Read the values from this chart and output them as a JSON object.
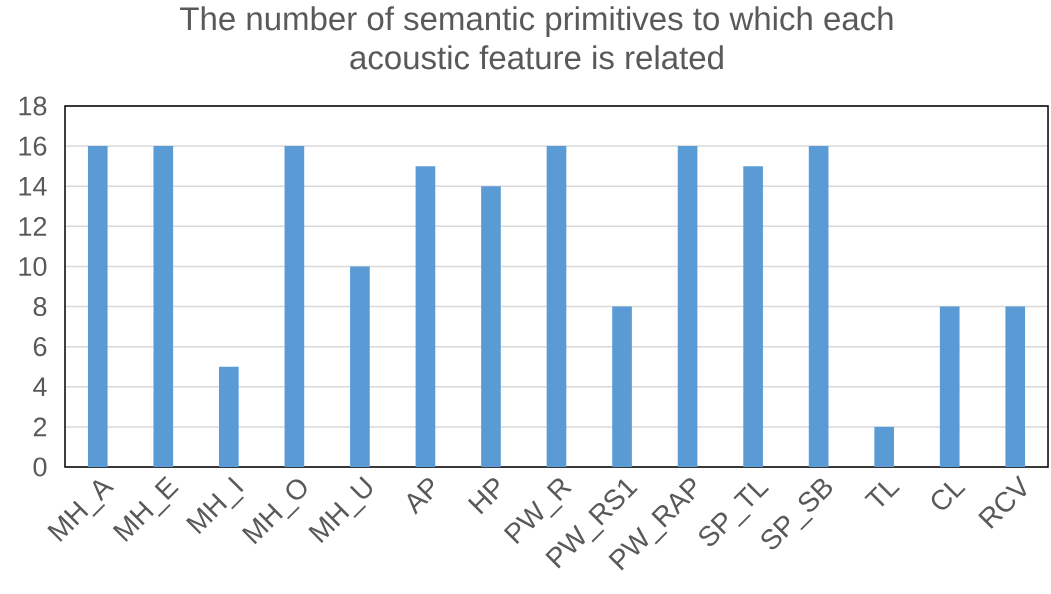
{
  "chart_data": {
    "type": "bar",
    "title": "The number of semantic primitives to which each acoustic feature is related",
    "categories": [
      "MH_A",
      "MH_E",
      "MH_I",
      "MH_O",
      "MH_U",
      "AP",
      "HP",
      "PW_R",
      "PW_RS1",
      "PW_RAP",
      "SP_TL",
      "SP_SB",
      "TL",
      "CL",
      "RCV"
    ],
    "values": [
      16,
      16,
      5,
      16,
      10,
      15,
      14,
      16,
      8,
      16,
      15,
      16,
      2,
      8,
      8
    ],
    "color": "#5b9bd5",
    "ylim": [
      0,
      18
    ],
    "yticks": [
      0,
      2,
      4,
      6,
      8,
      10,
      12,
      14,
      16,
      18
    ],
    "grid": "y"
  }
}
